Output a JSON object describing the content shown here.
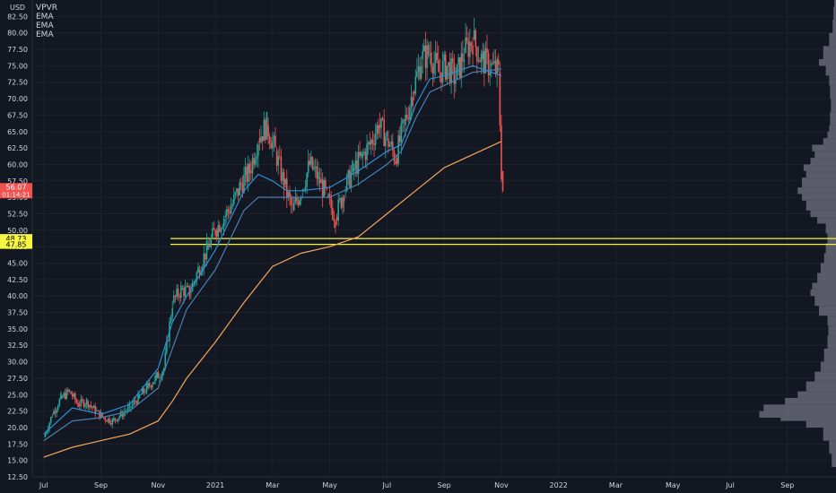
{
  "currency": "USD",
  "legend": [
    {
      "label": "VPVR"
    },
    {
      "label": "EMA"
    },
    {
      "label": "EMA"
    },
    {
      "label": "EMA"
    }
  ],
  "colors": {
    "background": "#131722",
    "axis_text": "#d1d4dc",
    "grid": "#1e222d",
    "candle_up": "#26a69a",
    "candle_down": "#ef5350",
    "ema_fast": "#2e8fd6",
    "ema_mid": "#4a7fb0",
    "ema_slow": "#f3a65a",
    "level_line": "#f5f542",
    "price_badge": "#ef5350",
    "level_badge": "#f5f542",
    "volume_profile": "#787b86"
  },
  "chart_data": {
    "type": "candlestick",
    "ylim": [
      12.5,
      85
    ],
    "y_ticks": [
      "12.50",
      "15.00",
      "17.50",
      "20.00",
      "22.50",
      "25.00",
      "27.50",
      "30.00",
      "32.50",
      "35.00",
      "37.50",
      "40.00",
      "42.50",
      "45.00",
      "47.50",
      "50.00",
      "52.50",
      "55.00",
      "57.50",
      "60.00",
      "62.50",
      "65.00",
      "67.50",
      "70.00",
      "72.50",
      "75.00",
      "77.50",
      "80.00",
      "82.50"
    ],
    "x_ticks": [
      "Jul",
      "Sep",
      "Nov",
      "2021",
      "Mar",
      "May",
      "Jul",
      "Sep",
      "Nov",
      "2022",
      "Mar",
      "May",
      "Jul",
      "Sep"
    ],
    "x_tick_months": [
      0,
      2,
      4,
      6,
      8,
      10,
      12,
      14,
      16,
      18,
      20,
      22,
      24,
      26
    ],
    "x_range_months": [
      -0.4,
      27.7
    ],
    "price_series": [
      [
        0,
        18.5
      ],
      [
        0.3,
        22.0
      ],
      [
        0.6,
        24.5
      ],
      [
        0.9,
        25.5
      ],
      [
        1.2,
        23.5
      ],
      [
        1.5,
        24.0
      ],
      [
        1.8,
        22.5
      ],
      [
        2.1,
        21.5
      ],
      [
        2.4,
        21.0
      ],
      [
        2.7,
        22.0
      ],
      [
        3.0,
        23.0
      ],
      [
        3.3,
        24.5
      ],
      [
        3.6,
        26.0
      ],
      [
        3.9,
        27.5
      ],
      [
        4.2,
        29.0
      ],
      [
        4.5,
        39.0
      ],
      [
        4.8,
        41.0
      ],
      [
        5.1,
        40.5
      ],
      [
        5.4,
        44.0
      ],
      [
        5.7,
        47.0
      ],
      [
        6.0,
        50.0
      ],
      [
        6.3,
        52.0
      ],
      [
        6.6,
        54.0
      ],
      [
        6.9,
        57.0
      ],
      [
        7.2,
        59.0
      ],
      [
        7.5,
        64.0
      ],
      [
        7.8,
        66.0
      ],
      [
        8.1,
        62.0
      ],
      [
        8.4,
        57.0
      ],
      [
        8.7,
        53.0
      ],
      [
        9.0,
        56.0
      ],
      [
        9.3,
        60.0
      ],
      [
        9.6,
        58.0
      ],
      [
        9.9,
        55.0
      ],
      [
        10.2,
        52.0
      ],
      [
        10.5,
        56.0
      ],
      [
        10.8,
        59.0
      ],
      [
        11.1,
        61.0
      ],
      [
        11.4,
        63.0
      ],
      [
        11.7,
        66.0
      ],
      [
        12.0,
        64.0
      ],
      [
        12.3,
        61.0
      ],
      [
        12.6,
        66.0
      ],
      [
        12.9,
        71.0
      ],
      [
        13.2,
        76.0
      ],
      [
        13.5,
        77.0
      ],
      [
        13.8,
        74.0
      ],
      [
        14.1,
        75.0
      ],
      [
        14.4,
        73.0
      ],
      [
        14.7,
        77.0
      ],
      [
        15.0,
        79.0
      ],
      [
        15.3,
        76.0
      ],
      [
        15.6,
        75.0
      ],
      [
        15.9,
        74.0
      ],
      [
        16.0,
        59.0
      ],
      [
        16.05,
        56.07
      ]
    ],
    "ema_fast": [
      [
        0,
        19.0
      ],
      [
        1,
        23.0
      ],
      [
        2,
        22.0
      ],
      [
        3,
        23.5
      ],
      [
        4,
        29.0
      ],
      [
        4.5,
        36.0
      ],
      [
        5,
        40.0
      ],
      [
        6,
        47.0
      ],
      [
        7,
        56.0
      ],
      [
        7.5,
        58.5
      ],
      [
        8,
        57.5
      ],
      [
        8.5,
        56.0
      ],
      [
        9,
        56.0
      ],
      [
        10,
        56.5
      ],
      [
        11,
        59.0
      ],
      [
        12,
        62.0
      ],
      [
        12.5,
        63.0
      ],
      [
        13,
        69.0
      ],
      [
        13.5,
        73.0
      ],
      [
        14,
        73.5
      ],
      [
        15,
        75.0
      ],
      [
        16,
        73.5
      ]
    ],
    "ema_mid": [
      [
        0,
        18.0
      ],
      [
        1,
        21.0
      ],
      [
        2,
        21.5
      ],
      [
        3,
        22.5
      ],
      [
        4,
        26.0
      ],
      [
        4.5,
        32.0
      ],
      [
        5,
        38.0
      ],
      [
        6,
        44.0
      ],
      [
        7,
        53.0
      ],
      [
        7.5,
        55.0
      ],
      [
        8,
        55.0
      ],
      [
        8.5,
        55.0
      ],
      [
        9,
        55.0
      ],
      [
        10,
        55.0
      ],
      [
        11,
        57.0
      ],
      [
        12,
        60.0
      ],
      [
        12.5,
        62.0
      ],
      [
        13,
        67.0
      ],
      [
        13.5,
        71.0
      ],
      [
        14,
        72.0
      ],
      [
        15,
        74.0
      ],
      [
        16,
        74.5
      ]
    ],
    "ema_slow": [
      [
        0,
        15.5
      ],
      [
        1,
        17.0
      ],
      [
        2,
        18.0
      ],
      [
        3,
        19.0
      ],
      [
        4,
        21.0
      ],
      [
        4.5,
        24.0
      ],
      [
        5,
        27.5
      ],
      [
        6,
        33.0
      ],
      [
        7,
        39.0
      ],
      [
        8,
        44.5
      ],
      [
        9,
        46.5
      ],
      [
        10,
        47.5
      ],
      [
        11,
        49.0
      ],
      [
        12,
        52.5
      ],
      [
        13,
        56.0
      ],
      [
        14,
        59.5
      ],
      [
        15,
        61.5
      ],
      [
        16,
        63.5
      ]
    ],
    "levels": [
      {
        "value": 48.73,
        "label": "48.73"
      },
      {
        "value": 47.85,
        "label": "47.85"
      }
    ],
    "last_price": {
      "value": 56.07,
      "label": "56.07",
      "countdown": "01:14:21"
    },
    "volume_profile": [
      [
        14,
        0.05
      ],
      [
        16,
        0.08
      ],
      [
        18,
        0.15
      ],
      [
        20,
        0.35
      ],
      [
        21,
        0.65
      ],
      [
        21.5,
        0.9
      ],
      [
        22.5,
        0.85
      ],
      [
        23.5,
        0.6
      ],
      [
        24.5,
        0.45
      ],
      [
        25.5,
        0.35
      ],
      [
        27,
        0.25
      ],
      [
        28.5,
        0.18
      ],
      [
        30,
        0.14
      ],
      [
        32,
        0.1
      ],
      [
        34,
        0.09
      ],
      [
        35.5,
        0.1
      ],
      [
        37,
        0.2
      ],
      [
        38.5,
        0.25
      ],
      [
        40,
        0.3
      ],
      [
        41,
        0.28
      ],
      [
        42,
        0.22
      ],
      [
        43.5,
        0.18
      ],
      [
        45,
        0.14
      ],
      [
        46.5,
        0.12
      ],
      [
        48,
        0.1
      ],
      [
        49.5,
        0.12
      ],
      [
        51,
        0.22
      ],
      [
        52,
        0.3
      ],
      [
        53,
        0.35
      ],
      [
        54.5,
        0.4
      ],
      [
        55.5,
        0.45
      ],
      [
        56.5,
        0.4
      ],
      [
        58,
        0.35
      ],
      [
        59,
        0.38
      ],
      [
        60,
        0.3
      ],
      [
        61,
        0.25
      ],
      [
        62,
        0.28
      ],
      [
        63,
        0.15
      ],
      [
        64,
        0.1
      ],
      [
        65,
        0.08
      ],
      [
        66,
        0.07
      ],
      [
        68,
        0.06
      ],
      [
        70,
        0.07
      ],
      [
        72,
        0.08
      ],
      [
        73.5,
        0.12
      ],
      [
        75,
        0.2
      ],
      [
        76,
        0.15
      ],
      [
        78,
        0.08
      ],
      [
        80,
        0.04
      ],
      [
        82,
        0.03
      ],
      [
        84,
        0.02
      ]
    ]
  }
}
